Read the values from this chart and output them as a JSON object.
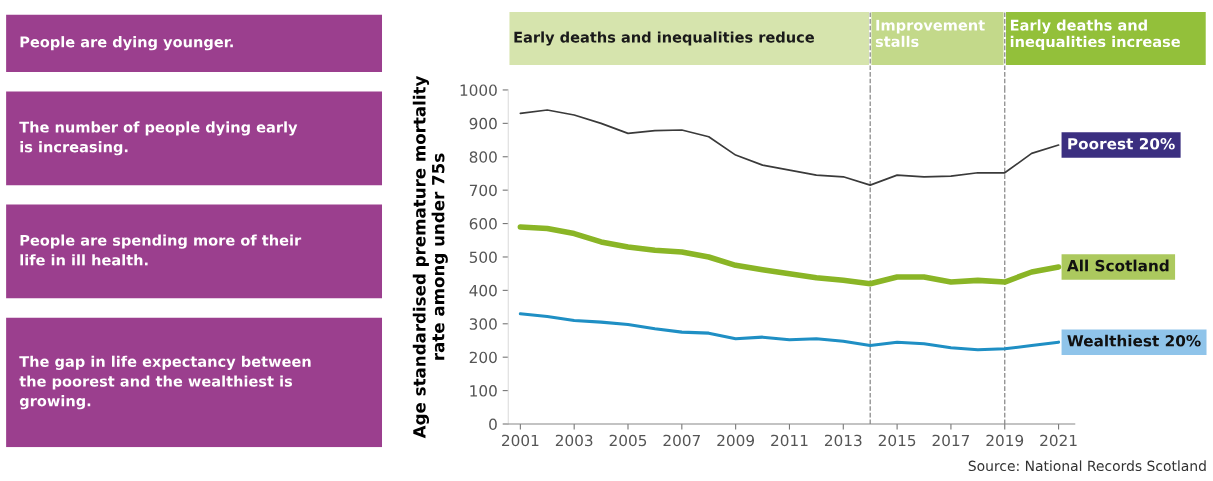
{
  "chart_data": [
    {
      "type": "other",
      "annotations": [
        "People are dying younger.",
        "The number of people dying early\nis increasing.",
        "People are spending more of their\nlife in ill health.",
        "The gap in life expectancy between\nthe poorest and the wealthiest is\ngrowing."
      ]
    },
    {
      "type": "line",
      "ylabel": "Age standardised premature mortality\nrate among under 75s",
      "x": [
        2001,
        2002,
        2003,
        2004,
        2005,
        2006,
        2007,
        2008,
        2009,
        2010,
        2011,
        2012,
        2013,
        2014,
        2015,
        2016,
        2017,
        2018,
        2019,
        2020,
        2021
      ],
      "series": [
        {
          "name": "Poorest 20%",
          "color": "#3a3a3a",
          "values": [
            930,
            940,
            925,
            900,
            870,
            878,
            880,
            860,
            805,
            775,
            760,
            745,
            740,
            715,
            745,
            740,
            742,
            752,
            752,
            810,
            835
          ]
        },
        {
          "name": "All Scotland",
          "color": "#8ab526",
          "values": [
            590,
            585,
            570,
            545,
            530,
            520,
            515,
            500,
            475,
            462,
            450,
            438,
            430,
            420,
            440,
            440,
            425,
            430,
            425,
            455,
            470
          ]
        },
        {
          "name": "Wealthiest 20%",
          "color": "#1f8fc4",
          "values": [
            330,
            322,
            310,
            305,
            298,
            285,
            275,
            272,
            255,
            260,
            252,
            255,
            248,
            235,
            245,
            240,
            228,
            222,
            225,
            235,
            245
          ]
        }
      ],
      "xlim": [
        2000.55,
        2021.6
      ],
      "ylim": [
        0,
        1000
      ],
      "xticks": [
        2001,
        2003,
        2005,
        2007,
        2009,
        2011,
        2013,
        2015,
        2017,
        2019,
        2021
      ],
      "yticks": [
        0,
        100,
        200,
        300,
        400,
        500,
        600,
        700,
        800,
        900,
        1000
      ],
      "ref_lines": [
        {
          "axis": "x",
          "value": 2014,
          "label": "Improvement\nstalls",
          "color": "#888888",
          "line_style": "dashed"
        },
        {
          "axis": "x",
          "value": 2019,
          "label": "Early deaths and\ninequalities increase",
          "color": "#888888",
          "line_style": "dashed"
        }
      ],
      "legend": "right",
      "grid": false,
      "marker": "none",
      "line_style": "solid",
      "annotations": [
        "Early deaths and inequalities reduce",
        "Source: National Records Scotland"
      ]
    }
  ]
}
